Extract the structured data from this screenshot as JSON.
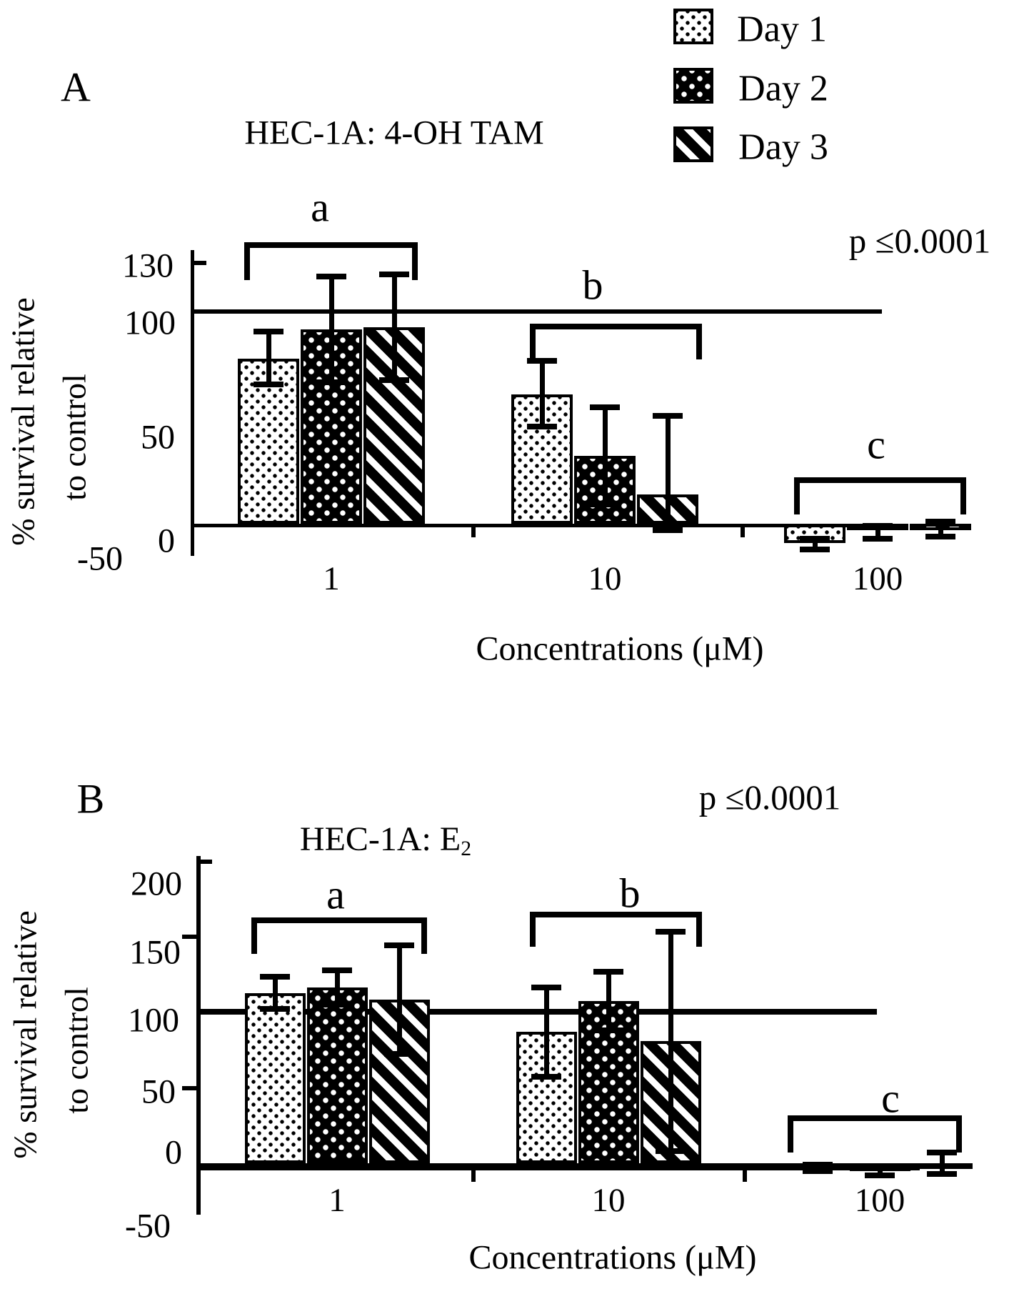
{
  "figure": {
    "legend": {
      "items": [
        {
          "label": "Day 1",
          "pattern": "light-dots-swatch"
        },
        {
          "label": "Day 2",
          "pattern": "dark-white-dots-swatch"
        },
        {
          "label": "Day 3",
          "pattern": "dark-diagonal-stripes-swatch"
        }
      ]
    },
    "panel_a": {
      "panel_label": "A",
      "title": "HEC-1A: 4-OH TAM",
      "p_value": "p ≤0.0001",
      "y_axis_label_line1": "% survival relative",
      "y_axis_label_line2": "to control",
      "x_axis_title": "Concentrations (μM)"
    },
    "panel_b": {
      "panel_label": "B",
      "title_main": "HEC-1A: E",
      "title_sub": "2",
      "p_value": "p ≤0.0001",
      "y_axis_label_line1": "% survival relative",
      "y_axis_label_line2": "to control",
      "x_axis_title": "Concentrations (μM)"
    }
  },
  "chart_data": [
    {
      "type": "bar",
      "panel": "A",
      "title": "HEC-1A: 4-OH TAM",
      "p_value": "p ≤0.0001",
      "categories": [
        "1",
        "10",
        "100"
      ],
      "xlabel": "Concentrations (μM)",
      "ylabel": "% survival relative to control",
      "yticks": [
        "130",
        "100",
        "50",
        "0",
        "-50"
      ],
      "ylim": [
        -50,
        130
      ],
      "reference_line_y": 100,
      "grid": false,
      "legend_position": "top-right",
      "series": [
        {
          "name": "Day 1",
          "values": [
            78,
            61,
            -9
          ],
          "err_low": [
            66,
            46,
            -12
          ],
          "err_high": [
            91,
            77,
            -7
          ]
        },
        {
          "name": "Day 2",
          "values": [
            92,
            32,
            -3
          ],
          "err_low": [
            67,
            9,
            -7
          ],
          "err_high": [
            117,
            55,
            -1
          ]
        },
        {
          "name": "Day 3",
          "values": [
            93,
            14,
            -3
          ],
          "err_low": [
            68,
            -3,
            -6
          ],
          "err_high": [
            118,
            51,
            1
          ]
        }
      ],
      "sig_brackets": [
        {
          "label": "a",
          "category": "1"
        },
        {
          "label": "b",
          "category": "10"
        },
        {
          "label": "c",
          "category": "100"
        }
      ]
    },
    {
      "type": "bar",
      "panel": "B",
      "title": "HEC-1A: E2",
      "p_value": "p ≤0.0001",
      "categories": [
        "1",
        "10",
        "100"
      ],
      "xlabel": "Concentrations (μM)",
      "ylabel": "% survival relative to control",
      "yticks": [
        "200",
        "150",
        "100",
        "50",
        "0",
        "-50"
      ],
      "ylim": [
        -50,
        200
      ],
      "reference_line_y": 100,
      "grid": false,
      "series": [
        {
          "name": "Day 1",
          "values": [
            110,
            85,
            -3
          ],
          "err_low": [
            100,
            56,
            -5
          ],
          "err_high": [
            121,
            114,
            -1
          ]
        },
        {
          "name": "Day 2",
          "values": [
            114,
            105,
            -5
          ],
          "err_low": [
            103,
            86,
            -8
          ],
          "err_high": [
            125,
            124,
            -2
          ]
        },
        {
          "name": "Day 3",
          "values": [
            106,
            79,
            -3
          ],
          "err_low": [
            71,
            8,
            -7
          ],
          "err_high": [
            141,
            150,
            7
          ]
        }
      ],
      "sig_brackets": [
        {
          "label": "a",
          "category": "1"
        },
        {
          "label": "b",
          "category": "10"
        },
        {
          "label": "c",
          "category": "100"
        }
      ]
    }
  ]
}
